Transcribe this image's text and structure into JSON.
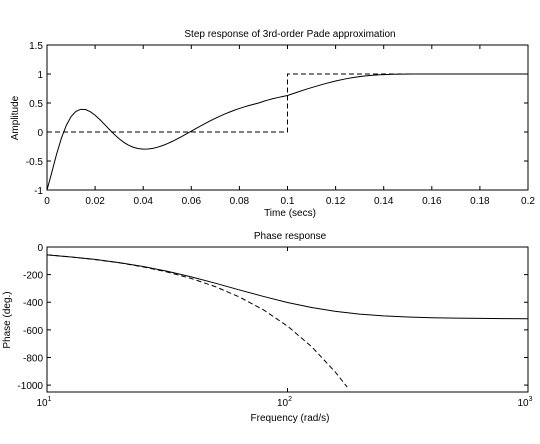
{
  "chart_data": [
    {
      "type": "line",
      "title": "Step response of 3rd-order Pade approximation",
      "xlabel": "Time (secs)",
      "ylabel": "Amplitude",
      "xlim": [
        0,
        0.2
      ],
      "ylim": [
        -1,
        1.5
      ],
      "x_ticks": [
        0,
        0.02,
        0.04,
        0.06,
        0.08,
        0.1,
        0.12,
        0.14,
        0.16,
        0.18,
        0.2
      ],
      "x_tick_labels": [
        "0",
        "0.02",
        "0.04",
        "0.06",
        "0.08",
        "0.1",
        "0.12",
        "0.14",
        "0.16",
        "0.18",
        "0.2"
      ],
      "y_ticks": [
        -1,
        -0.5,
        0,
        0.5,
        1,
        1.5
      ],
      "y_tick_labels": [
        "-1",
        "-0.5",
        "0",
        "0.5",
        "1",
        "1.5"
      ],
      "grid": false,
      "series": [
        {
          "style": "solid",
          "x": [
            0,
            0.002,
            0.004,
            0.006,
            0.008,
            0.01,
            0.012,
            0.014,
            0.016,
            0.018,
            0.02,
            0.022,
            0.024,
            0.026,
            0.028,
            0.03,
            0.032,
            0.034,
            0.036,
            0.038,
            0.04,
            0.042,
            0.044,
            0.046,
            0.048,
            0.05,
            0.052,
            0.054,
            0.056,
            0.058,
            0.06,
            0.062,
            0.064,
            0.066,
            0.068,
            0.07,
            0.072,
            0.074,
            0.076,
            0.078,
            0.08,
            0.082,
            0.084,
            0.086,
            0.088,
            0.09,
            0.092,
            0.094,
            0.096,
            0.098,
            0.1,
            0.104,
            0.108,
            0.112,
            0.116,
            0.12,
            0.124,
            0.128,
            0.132,
            0.136,
            0.14,
            0.144,
            0.148,
            0.152,
            0.156,
            0.16,
            0.165,
            0.17,
            0.175,
            0.18,
            0.185,
            0.19,
            0.195,
            0.2
          ],
          "y": [
            -1,
            -0.695,
            -0.38,
            -0.105,
            0.112,
            0.264,
            0.355,
            0.391,
            0.387,
            0.35,
            0.289,
            0.213,
            0.128,
            0.041,
            -0.042,
            -0.117,
            -0.18,
            -0.23,
            -0.265,
            -0.287,
            -0.296,
            -0.294,
            -0.282,
            -0.262,
            -0.235,
            -0.202,
            -0.164,
            -0.122,
            -0.078,
            -0.032,
            0.015,
            0.062,
            0.107,
            0.152,
            0.195,
            0.236,
            0.275,
            0.311,
            0.345,
            0.377,
            0.406,
            0.432,
            0.457,
            0.479,
            0.5,
            0.528,
            0.553,
            0.575,
            0.594,
            0.612,
            0.63,
            0.685,
            0.74,
            0.79,
            0.837,
            0.88,
            0.915,
            0.944,
            0.966,
            0.981,
            0.99,
            0.995,
            0.998,
            0.999,
            1.0,
            1.0,
            1.0,
            1.0,
            1.0,
            1.0,
            1.0,
            1.0,
            1.0,
            1.0
          ]
        },
        {
          "style": "dashed",
          "x": [
            0,
            0.1,
            0.1,
            0.2
          ],
          "y": [
            0,
            0,
            1,
            1
          ]
        }
      ]
    },
    {
      "type": "line",
      "title": "Phase response",
      "xlabel": "Frequency (rad/s)",
      "ylabel": "Phase (deg.)",
      "x_scale": "log",
      "xlim": [
        10,
        1000
      ],
      "ylim": [
        -1050,
        0
      ],
      "x_ticks": [
        10,
        100,
        1000
      ],
      "x_tick_labels": [
        {
          "base": "10",
          "exp": "1"
        },
        {
          "base": "10",
          "exp": "2"
        },
        {
          "base": "10",
          "exp": "3"
        }
      ],
      "y_ticks": [
        -1000,
        -800,
        -600,
        -400,
        -200,
        0
      ],
      "y_tick_labels": [
        "-1000",
        "-800",
        "-600",
        "-400",
        "-200",
        "0"
      ],
      "grid": false,
      "series": [
        {
          "style": "solid",
          "x": [
            10,
            12.59,
            15.85,
            19.95,
            25.12,
            31.62,
            39.81,
            50.12,
            63.1,
            79.43,
            100,
            125.9,
            158.5,
            199.5,
            251.2,
            316.2,
            398.1,
            501.2,
            631,
            794.3,
            1000
          ],
          "y": [
            -57,
            -72,
            -90,
            -113,
            -141,
            -176,
            -216,
            -262,
            -311,
            -358,
            -402,
            -438,
            -466,
            -486,
            -499,
            -507,
            -512,
            -515,
            -517,
            -518.5,
            -519.5
          ]
        },
        {
          "style": "dashed",
          "x": [
            10,
            12.59,
            15.85,
            19.95,
            25.12,
            31.62,
            39.81,
            50.12,
            63.1,
            79.43,
            100,
            125.9,
            158.5,
            177
          ],
          "y": [
            -57,
            -72,
            -91,
            -114,
            -144,
            -181,
            -228,
            -287,
            -362,
            -455,
            -573,
            -721,
            -908,
            -1014
          ]
        }
      ]
    }
  ]
}
